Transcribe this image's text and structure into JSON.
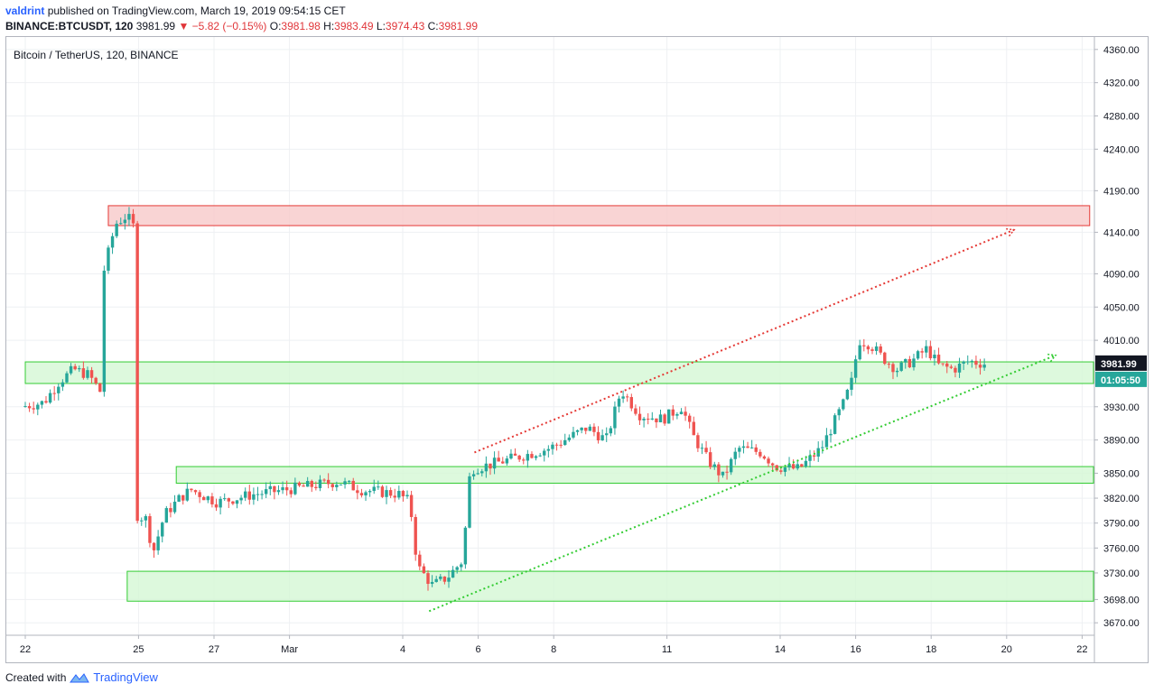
{
  "header": {
    "author": "valdrint",
    "published_text": "published on TradingView.com, March 19, 2019 09:54:15 CET",
    "symbol_line": "BINANCE:BTCUSDT, 120",
    "price": "3981.99",
    "change_arrow": "▼",
    "change": "−5.82 (−0.15%)",
    "o_label": "O:",
    "o_value": "3981.98",
    "h_label": "H:",
    "h_value": "3983.49",
    "l_label": "L:",
    "l_value": "3974.43",
    "c_label": "C:",
    "c_value": "3981.99"
  },
  "legend": {
    "text": "Bitcoin / TetherUS, 120, BINANCE"
  },
  "footer": {
    "created_with": "Created with",
    "brand": "TradingView"
  },
  "colors": {
    "up": "#26a69a",
    "down": "#ef5350",
    "resistance_fill": "#f7c9c9",
    "resistance_stroke": "#e53935",
    "support_fill": "#d4f7d4",
    "support_stroke": "#33cc33",
    "red_trend": "#e53935",
    "green_trend": "#33cc33",
    "label_dark": "#131722",
    "label_green": "#26a69a"
  },
  "chart_data": {
    "type": "candlestick",
    "title": "Bitcoin / TetherUS, 120, BINANCE",
    "y_axis": {
      "labels": [
        "4360.00",
        "4320.00",
        "4280.00",
        "4240.00",
        "4190.00",
        "4140.00",
        "4090.00",
        "4050.00",
        "4010.00",
        "3930.00",
        "3890.00",
        "3850.00",
        "3820.00",
        "3790.00",
        "3760.00",
        "3730.00",
        "3698.00",
        "3670.00"
      ],
      "range": [
        3655,
        4375
      ]
    },
    "x_axis": {
      "labels": [
        "22",
        "25",
        "27",
        "Mar",
        "4",
        "6",
        "8",
        "11",
        "14",
        "16",
        "18",
        "20",
        "22"
      ],
      "start_index": 0,
      "label_indices": [
        0,
        3,
        5,
        7,
        10,
        12,
        14,
        17,
        20,
        22,
        24,
        26,
        28
      ]
    },
    "price_labels": {
      "last": "3981.99",
      "countdown": "01:05:50"
    },
    "zones": [
      {
        "kind": "resistance",
        "x_start": 2.2,
        "x_end": 28.2,
        "y_top": 4172,
        "y_bottom": 4148
      },
      {
        "kind": "support",
        "x_start": 0,
        "x_end": 28.5,
        "y_top": 3984,
        "y_bottom": 3958
      },
      {
        "kind": "support",
        "x_start": 4.0,
        "x_end": 28.5,
        "y_top": 3858,
        "y_bottom": 3838
      },
      {
        "kind": "support",
        "x_start": 2.7,
        "x_end": 28.5,
        "y_top": 3732,
        "y_bottom": 3696
      }
    ],
    "trendlines": [
      {
        "kind": "resistance",
        "x1": 11.9,
        "y1": 3875,
        "x2": 26.2,
        "y2": 4143
      },
      {
        "kind": "support",
        "x1": 10.7,
        "y1": 3684,
        "x2": 27.3,
        "y2": 3992
      }
    ],
    "price_path": [
      [
        0,
        3930
      ],
      [
        0.6,
        3935
      ],
      [
        1.0,
        3960
      ],
      [
        1.4,
        3975
      ],
      [
        1.8,
        3968
      ],
      [
        2.1,
        3948
      ],
      [
        2.2,
        4095
      ],
      [
        2.5,
        4150
      ],
      [
        2.8,
        4160
      ],
      [
        3.0,
        4145
      ],
      [
        3.05,
        3800
      ],
      [
        3.3,
        3795
      ],
      [
        3.5,
        3755
      ],
      [
        3.8,
        3800
      ],
      [
        4.2,
        3820
      ],
      [
        4.5,
        3830
      ],
      [
        5.2,
        3815
      ],
      [
        6.2,
        3825
      ],
      [
        7.0,
        3830
      ],
      [
        7.7,
        3835
      ],
      [
        8.4,
        3840
      ],
      [
        9.0,
        3830
      ],
      [
        10.0,
        3825
      ],
      [
        10.3,
        3815
      ],
      [
        10.5,
        3738
      ],
      [
        10.9,
        3715
      ],
      [
        11.3,
        3725
      ],
      [
        11.7,
        3745
      ],
      [
        11.9,
        3855
      ],
      [
        12.4,
        3860
      ],
      [
        13.2,
        3870
      ],
      [
        14.0,
        3880
      ],
      [
        15.0,
        3905
      ],
      [
        15.5,
        3890
      ],
      [
        15.9,
        3950
      ],
      [
        16.4,
        3920
      ],
      [
        17.0,
        3915
      ],
      [
        17.5,
        3930
      ],
      [
        17.8,
        3895
      ],
      [
        18.2,
        3865
      ],
      [
        18.6,
        3845
      ],
      [
        19.0,
        3880
      ],
      [
        19.6,
        3875
      ],
      [
        20.0,
        3858
      ],
      [
        20.6,
        3855
      ],
      [
        21.2,
        3880
      ],
      [
        21.8,
        3935
      ],
      [
        22.0,
        3960
      ],
      [
        22.2,
        4010
      ],
      [
        22.5,
        4005
      ],
      [
        22.8,
        3990
      ],
      [
        23.2,
        3975
      ],
      [
        23.6,
        3985
      ],
      [
        24.0,
        4000
      ],
      [
        24.3,
        3980
      ],
      [
        24.7,
        3975
      ],
      [
        25.1,
        3985
      ],
      [
        25.5,
        3981.99
      ]
    ]
  }
}
